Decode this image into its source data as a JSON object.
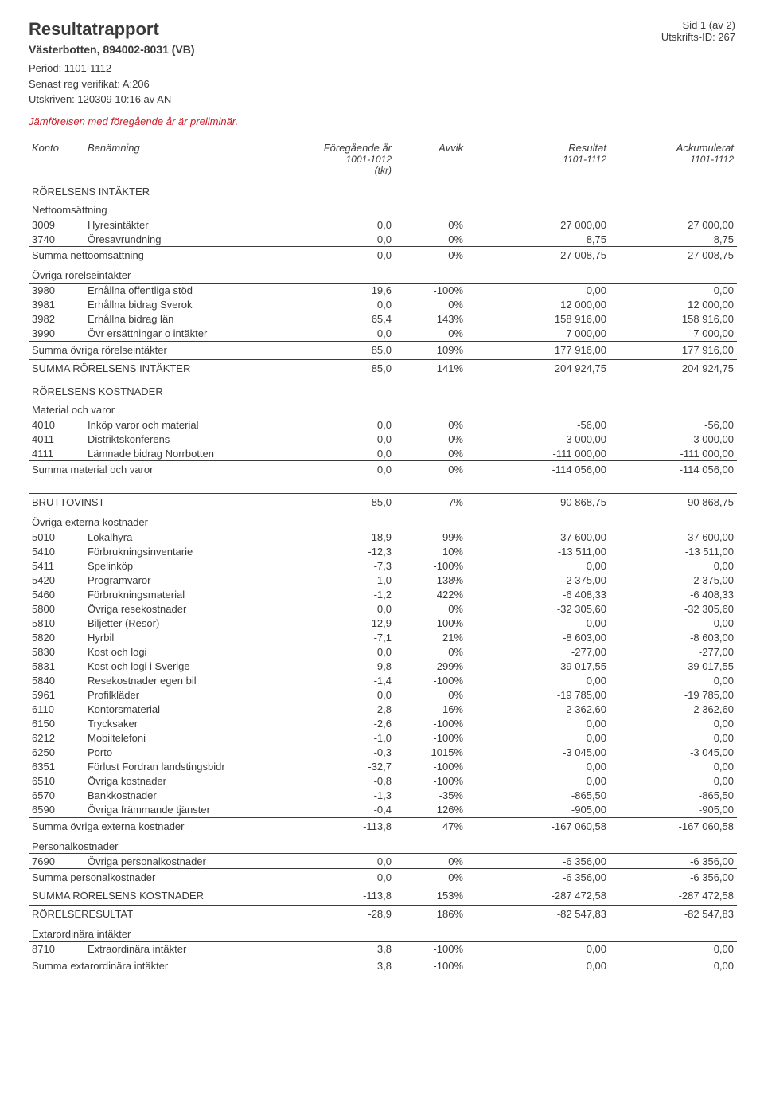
{
  "page_info": {
    "side": "Sid 1 (av 2)",
    "utskrifts_id": "Utskrifts-ID: 267"
  },
  "header": {
    "title": "Resultatrapport",
    "org": "Västerbotten, 894002-8031 (VB)",
    "period": "Period: 1101-1112",
    "senast": "Senast reg verifikat: A:206",
    "utskriven": "Utskriven: 120309 10:16 av AN",
    "prelim": "Jämförelsen med föregående år är preliminär."
  },
  "columns": {
    "konto": "Konto",
    "benamning": "Benämning",
    "foregaende": "Föregående år",
    "foregaende_sub1": "1001-1012",
    "foregaende_sub2": "(tkr)",
    "avvik": "Avvik",
    "resultat": "Resultat",
    "resultat_sub": "1101-1112",
    "ackum": "Ackumulerat",
    "ackum_sub": "1101-1112"
  },
  "sections": [
    {
      "type": "section",
      "label": "RÖRELSENS INTÄKTER"
    },
    {
      "type": "subsection",
      "label": "Nettoomsättning"
    },
    {
      "type": "row",
      "konto": "3009",
      "ben": "Hyresintäkter",
      "prev": "0,0",
      "avvik": "0%",
      "res": "27 000,00",
      "ack": "27 000,00"
    },
    {
      "type": "row",
      "konto": "3740",
      "ben": "Öresavrundning",
      "prev": "0,0",
      "avvik": "0%",
      "res": "8,75",
      "ack": "8,75"
    },
    {
      "type": "sum",
      "label": "Summa nettoomsättning",
      "prev": "0,0",
      "avvik": "0%",
      "res": "27 008,75",
      "ack": "27 008,75"
    },
    {
      "type": "subsection",
      "label": "Övriga rörelseintäkter"
    },
    {
      "type": "row",
      "konto": "3980",
      "ben": "Erhållna offentliga stöd",
      "prev": "19,6",
      "avvik": "-100%",
      "res": "0,00",
      "ack": "0,00"
    },
    {
      "type": "row",
      "konto": "3981",
      "ben": "Erhållna bidrag Sverok",
      "prev": "0,0",
      "avvik": "0%",
      "res": "12 000,00",
      "ack": "12 000,00"
    },
    {
      "type": "row",
      "konto": "3982",
      "ben": "Erhållna bidrag län",
      "prev": "65,4",
      "avvik": "143%",
      "res": "158 916,00",
      "ack": "158 916,00"
    },
    {
      "type": "row",
      "konto": "3990",
      "ben": "Övr ersättningar o intäkter",
      "prev": "0,0",
      "avvik": "0%",
      "res": "7 000,00",
      "ack": "7 000,00"
    },
    {
      "type": "sum",
      "label": "Summa övriga rörelseintäkter",
      "prev": "85,0",
      "avvik": "109%",
      "res": "177 916,00",
      "ack": "177 916,00"
    },
    {
      "type": "sumline",
      "label": "SUMMA RÖRELSENS INTÄKTER",
      "prev": "85,0",
      "avvik": "141%",
      "res": "204 924,75",
      "ack": "204 924,75"
    },
    {
      "type": "section",
      "label": "RÖRELSENS KOSTNADER"
    },
    {
      "type": "subsection",
      "label": "Material och varor"
    },
    {
      "type": "row",
      "konto": "4010",
      "ben": "Inköp varor och material",
      "prev": "0,0",
      "avvik": "0%",
      "res": "-56,00",
      "ack": "-56,00"
    },
    {
      "type": "row",
      "konto": "4011",
      "ben": "Distriktskonferens",
      "prev": "0,0",
      "avvik": "0%",
      "res": "-3 000,00",
      "ack": "-3 000,00"
    },
    {
      "type": "row",
      "konto": "4111",
      "ben": "Lämnade bidrag Norrbotten",
      "prev": "0,0",
      "avvik": "0%",
      "res": "-111 000,00",
      "ack": "-111 000,00"
    },
    {
      "type": "sum",
      "label": "Summa material och varor",
      "prev": "0,0",
      "avvik": "0%",
      "res": "-114 056,00",
      "ack": "-114 056,00"
    },
    {
      "type": "gap"
    },
    {
      "type": "sumline",
      "label": "BRUTTOVINST",
      "prev": "85,0",
      "avvik": "7%",
      "res": "90 868,75",
      "ack": "90 868,75"
    },
    {
      "type": "subsection",
      "label": "Övriga externa kostnader"
    },
    {
      "type": "row",
      "konto": "5010",
      "ben": "Lokalhyra",
      "prev": "-18,9",
      "avvik": "99%",
      "res": "-37 600,00",
      "ack": "-37 600,00"
    },
    {
      "type": "row",
      "konto": "5410",
      "ben": "Förbrukningsinventarie",
      "prev": "-12,3",
      "avvik": "10%",
      "res": "-13 511,00",
      "ack": "-13 511,00"
    },
    {
      "type": "row",
      "konto": "5411",
      "ben": "Spelinköp",
      "prev": "-7,3",
      "avvik": "-100%",
      "res": "0,00",
      "ack": "0,00"
    },
    {
      "type": "row",
      "konto": "5420",
      "ben": "Programvaror",
      "prev": "-1,0",
      "avvik": "138%",
      "res": "-2 375,00",
      "ack": "-2 375,00"
    },
    {
      "type": "row",
      "konto": "5460",
      "ben": "Förbrukningsmaterial",
      "prev": "-1,2",
      "avvik": "422%",
      "res": "-6 408,33",
      "ack": "-6 408,33"
    },
    {
      "type": "row",
      "konto": "5800",
      "ben": "Övriga resekostnader",
      "prev": "0,0",
      "avvik": "0%",
      "res": "-32 305,60",
      "ack": "-32 305,60"
    },
    {
      "type": "row",
      "konto": "5810",
      "ben": "Biljetter (Resor)",
      "prev": "-12,9",
      "avvik": "-100%",
      "res": "0,00",
      "ack": "0,00"
    },
    {
      "type": "row",
      "konto": "5820",
      "ben": "Hyrbil",
      "prev": "-7,1",
      "avvik": "21%",
      "res": "-8 603,00",
      "ack": "-8 603,00"
    },
    {
      "type": "row",
      "konto": "5830",
      "ben": "Kost och logi",
      "prev": "0,0",
      "avvik": "0%",
      "res": "-277,00",
      "ack": "-277,00"
    },
    {
      "type": "row",
      "konto": "5831",
      "ben": "Kost och logi i Sverige",
      "prev": "-9,8",
      "avvik": "299%",
      "res": "-39 017,55",
      "ack": "-39 017,55"
    },
    {
      "type": "row",
      "konto": "5840",
      "ben": "Resekostnader egen bil",
      "prev": "-1,4",
      "avvik": "-100%",
      "res": "0,00",
      "ack": "0,00"
    },
    {
      "type": "row",
      "konto": "5961",
      "ben": "Profilkläder",
      "prev": "0,0",
      "avvik": "0%",
      "res": "-19 785,00",
      "ack": "-19 785,00"
    },
    {
      "type": "row",
      "konto": "6110",
      "ben": "Kontorsmaterial",
      "prev": "-2,8",
      "avvik": "-16%",
      "res": "-2 362,60",
      "ack": "-2 362,60"
    },
    {
      "type": "row",
      "konto": "6150",
      "ben": "Trycksaker",
      "prev": "-2,6",
      "avvik": "-100%",
      "res": "0,00",
      "ack": "0,00"
    },
    {
      "type": "row",
      "konto": "6212",
      "ben": "Mobiltelefoni",
      "prev": "-1,0",
      "avvik": "-100%",
      "res": "0,00",
      "ack": "0,00"
    },
    {
      "type": "row",
      "konto": "6250",
      "ben": "Porto",
      "prev": "-0,3",
      "avvik": "1015%",
      "res": "-3 045,00",
      "ack": "-3 045,00"
    },
    {
      "type": "row",
      "konto": "6351",
      "ben": "Förlust Fordran landstingsbidr",
      "prev": "-32,7",
      "avvik": "-100%",
      "res": "0,00",
      "ack": "0,00"
    },
    {
      "type": "row",
      "konto": "6510",
      "ben": "Övriga kostnader",
      "prev": "-0,8",
      "avvik": "-100%",
      "res": "0,00",
      "ack": "0,00"
    },
    {
      "type": "row",
      "konto": "6570",
      "ben": "Bankkostnader",
      "prev": "-1,3",
      "avvik": "-35%",
      "res": "-865,50",
      "ack": "-865,50"
    },
    {
      "type": "row",
      "konto": "6590",
      "ben": "Övriga främmande tjänster",
      "prev": "-0,4",
      "avvik": "126%",
      "res": "-905,00",
      "ack": "-905,00"
    },
    {
      "type": "sum",
      "label": "Summa övriga externa kostnader",
      "prev": "-113,8",
      "avvik": "47%",
      "res": "-167 060,58",
      "ack": "-167 060,58"
    },
    {
      "type": "subsection",
      "label": "Personalkostnader"
    },
    {
      "type": "row",
      "konto": "7690",
      "ben": "Övriga personalkostnader",
      "prev": "0,0",
      "avvik": "0%",
      "res": "-6 356,00",
      "ack": "-6 356,00"
    },
    {
      "type": "sum",
      "label": "Summa personalkostnader",
      "prev": "0,0",
      "avvik": "0%",
      "res": "-6 356,00",
      "ack": "-6 356,00"
    },
    {
      "type": "sumline",
      "label": "SUMMA RÖRELSENS KOSTNADER",
      "prev": "-113,8",
      "avvik": "153%",
      "res": "-287 472,58",
      "ack": "-287 472,58"
    },
    {
      "type": "sumline",
      "label": "RÖRELSERESULTAT",
      "prev": "-28,9",
      "avvik": "186%",
      "res": "-82 547,83",
      "ack": "-82 547,83"
    },
    {
      "type": "subsection",
      "label": "Extarordinära intäkter"
    },
    {
      "type": "row",
      "konto": "8710",
      "ben": "Extraordinära intäkter",
      "prev": "3,8",
      "avvik": "-100%",
      "res": "0,00",
      "ack": "0,00"
    },
    {
      "type": "sum",
      "label": "Summa extarordinära intäkter",
      "prev": "3,8",
      "avvik": "-100%",
      "res": "0,00",
      "ack": "0,00"
    }
  ]
}
